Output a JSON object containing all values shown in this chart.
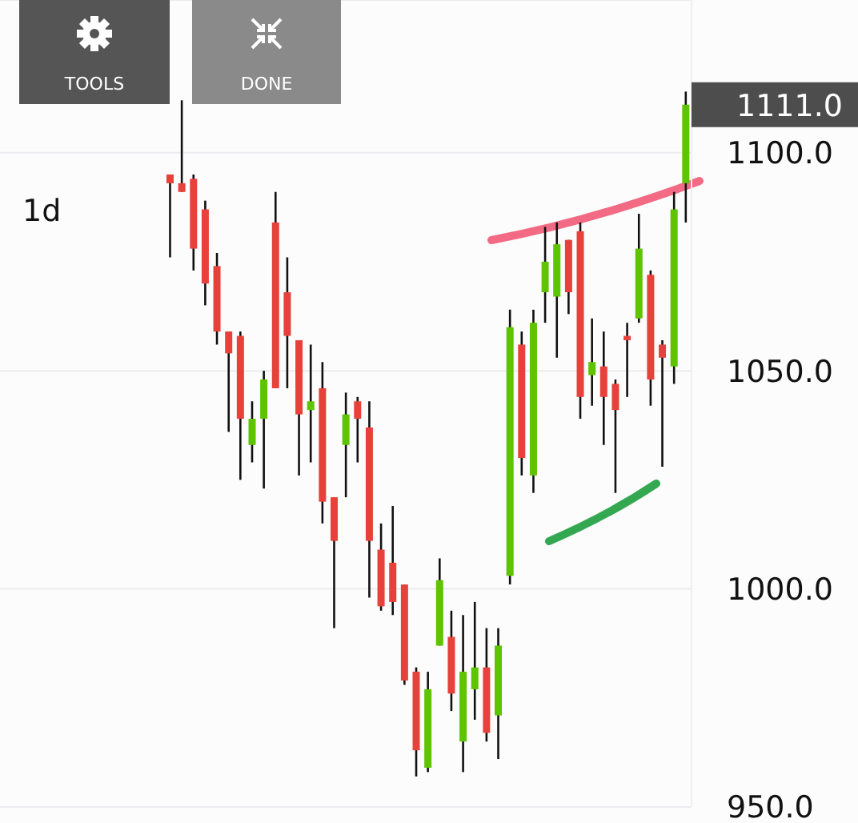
{
  "chart_data": {
    "type": "candlestick",
    "subtitle": "1d",
    "categories": [
      null,
      null,
      null,
      null,
      null,
      null,
      null,
      null,
      null,
      null,
      null,
      null,
      null,
      null,
      null,
      null,
      null,
      null,
      null,
      null,
      null,
      null,
      null,
      null,
      null,
      null,
      null,
      null,
      null,
      null,
      null,
      null,
      null,
      null,
      null,
      null,
      null,
      null,
      null,
      null,
      null,
      null,
      null,
      null,
      null,
      null,
      null,
      null,
      null,
      null,
      null,
      null,
      null,
      null,
      null,
      null,
      null,
      null,
      null
    ],
    "ohlc": [
      null,
      null,
      null,
      null,
      null,
      null,
      null,
      null,
      null,
      null,
      null,
      null,
      null,
      null,
      [
        1095,
        1095,
        1076,
        1093
      ],
      [
        1093,
        1112,
        1091,
        1091
      ],
      [
        1094,
        1095,
        1073,
        1078
      ],
      [
        1087,
        1089,
        1065,
        1070
      ],
      [
        1074,
        1077,
        1056,
        1059
      ],
      [
        1059,
        1059,
        1036,
        1054
      ],
      [
        1058,
        1059,
        1025,
        1039
      ],
      [
        1033,
        1043,
        1029,
        1039
      ],
      [
        1039,
        1050,
        1023,
        1048
      ],
      [
        1084,
        1091,
        1046,
        1046
      ],
      [
        1068,
        1076,
        1046,
        1058
      ],
      [
        1057,
        1057,
        1026,
        1040
      ],
      [
        1041,
        1056,
        1029,
        1043
      ],
      [
        1046,
        1052,
        1015,
        1020
      ],
      [
        1021,
        1021,
        991,
        1011
      ],
      [
        1033,
        1045,
        1021,
        1040
      ],
      [
        1043,
        1044,
        1029,
        1039
      ],
      [
        1037,
        1043,
        998,
        1011
      ],
      [
        1009,
        1015,
        995,
        996
      ],
      [
        1006,
        1019,
        994,
        997
      ],
      [
        1001,
        1001,
        978,
        979
      ],
      [
        981,
        982,
        957,
        963
      ],
      [
        959,
        981,
        958,
        977
      ],
      [
        987,
        1007,
        987,
        1002
      ],
      [
        989,
        995,
        972,
        976
      ],
      [
        965,
        994,
        958,
        981
      ],
      [
        977,
        997,
        970,
        982
      ],
      [
        982,
        991,
        965,
        967
      ],
      [
        971,
        991,
        961,
        987
      ],
      [
        1003,
        1064,
        1001,
        1060
      ],
      [
        1056,
        1059,
        1026,
        1030
      ],
      [
        1026,
        1064,
        1022,
        1061
      ],
      [
        1068,
        1083,
        1061,
        1075
      ],
      [
        1067,
        1084,
        1053,
        1079
      ],
      [
        1080,
        1080,
        1063,
        1068
      ],
      [
        1082,
        1084,
        1039,
        1044
      ],
      [
        1049,
        1062,
        1042,
        1052
      ],
      [
        1051,
        1059,
        1033,
        1044
      ],
      [
        1047,
        1048,
        1022,
        1041
      ],
      [
        1058,
        1061,
        1044,
        1057
      ],
      [
        1062,
        1086,
        1061,
        1078
      ],
      [
        1072,
        1073,
        1042,
        1048
      ],
      [
        1056,
        1057,
        1028,
        1053
      ],
      [
        1051,
        1091,
        1047,
        1087
      ],
      [
        1093,
        1114,
        1084,
        1111
      ]
    ],
    "ylim": [
      950,
      1135
    ],
    "yticks": [
      {
        "value": 950,
        "label": "950.0"
      },
      {
        "value": 1000,
        "label": "1000.0"
      },
      {
        "value": 1050,
        "label": "1050.0"
      },
      {
        "value": 1100,
        "label": "1100.0"
      }
    ],
    "grid": "y",
    "annotations": [
      "TOOLS",
      "DONE",
      "1111.0"
    ]
  }
}
